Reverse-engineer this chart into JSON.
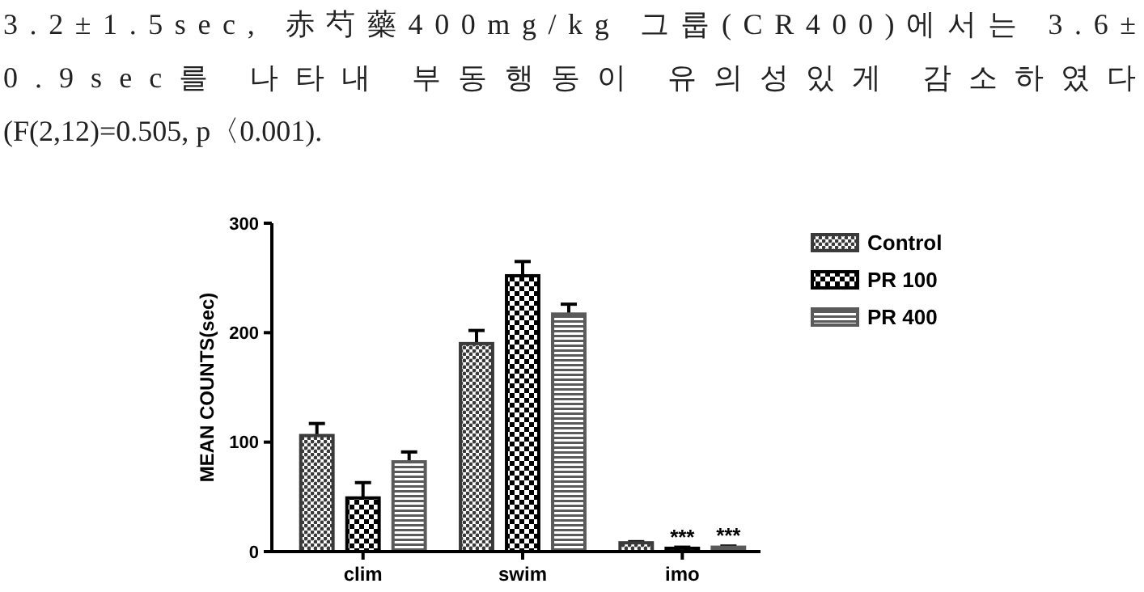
{
  "chart_data": {
    "type": "bar",
    "ylabel": "MEAN COUNTS(sec)",
    "categories": [
      "clim",
      "swim",
      "imo"
    ],
    "series": [
      {
        "name": "Control",
        "color": "#3a3a3a",
        "values": [
          106,
          190,
          8
        ],
        "errors": [
          11,
          12,
          1
        ]
      },
      {
        "name": "PR 100",
        "color": "#000000",
        "values": [
          49,
          252,
          3
        ],
        "errors": [
          14,
          13,
          1
        ]
      },
      {
        "name": "PR 400",
        "color": "#5a5a5a",
        "values": [
          82,
          217,
          4
        ],
        "errors": [
          9,
          9,
          1
        ]
      }
    ],
    "ylim": [
      0,
      300
    ],
    "yticks": [
      0,
      100,
      200,
      300
    ],
    "grid": false,
    "legend": "top right",
    "annotations": [
      "3.2±1.5sec,  赤芍藥400mg/kg  그룹(CR400)에서는  3.6±",
      "0.9sec를  나타내  부동행동이  유의성있게  감소하였다",
      "(F(2,12)=0.505, p〈0.001).",
      {
        "text": "***",
        "x": "imo",
        "y": 3
      },
      {
        "text": "***",
        "x": "imo",
        "y": 4
      }
    ]
  }
}
